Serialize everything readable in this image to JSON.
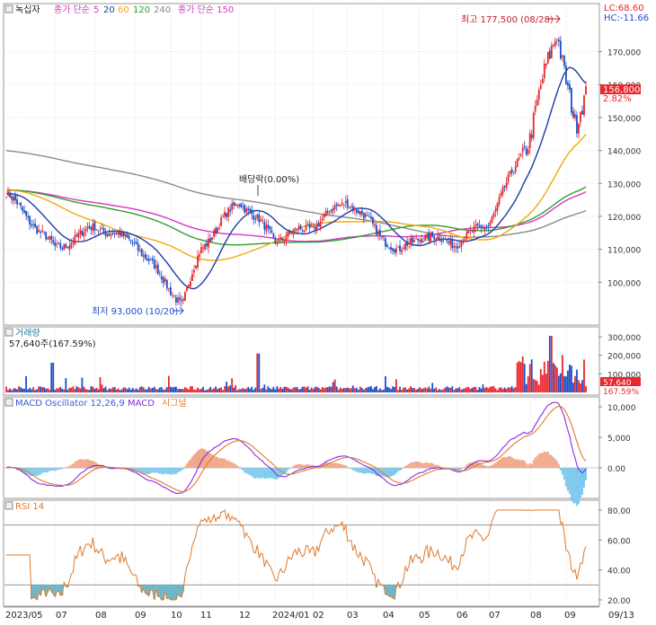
{
  "colors": {
    "up": "#e8262b",
    "down": "#1f4ec9",
    "ma5": "#d636c4",
    "ma20": "#1e3aa8",
    "ma60": "#f2a80f",
    "ma120": "#2f9e2f",
    "ma240": "#8a8a8a",
    "ma150": "#d636c4",
    "macd": "#8a2be2",
    "signal": "#e07a2c",
    "osc_pos": "#f0a88a",
    "osc_neg": "#7ccaee",
    "rsi": "#e07a2c",
    "rsi_fill": "#6fb6c9",
    "badge": "#e8262b"
  },
  "price_legend": {
    "series": "녹십자",
    "ma_title": "종가 단순",
    "ma_periods": [
      "5",
      "20",
      "60",
      "120",
      "240"
    ],
    "ma150_label": "종가 단순 150"
  },
  "corner": {
    "lc": "LC:68.60",
    "hc": "HC:-11.66"
  },
  "annotations": {
    "high": "최고 177,500 (08/28)",
    "low": "최저 93,000 (10/20)",
    "dividend": "배당락(0.00%)"
  },
  "price_axis": {
    "ticks": [
      "170,000",
      "160,000",
      "150,000",
      "140,000",
      "130,000",
      "120,000",
      "110,000",
      "100,000"
    ],
    "current": "156,800",
    "change": "2.82%"
  },
  "volume": {
    "title": "거래량",
    "info": "57,640주(167.59%)",
    "ticks": [
      "300,000",
      "200,000",
      "100,000"
    ],
    "current": "57,640",
    "pct": "167.59%"
  },
  "macd": {
    "title": "MACD Oscillator 12,26,9",
    "macd_label": "MACD",
    "signal_label": "시그널",
    "ticks": [
      "10,000",
      "5,000",
      "0.00"
    ]
  },
  "rsi": {
    "title": "RSI 14",
    "ticks": [
      "80.00",
      "60.00",
      "40.00",
      "20.00"
    ]
  },
  "x_axis": {
    "labels": [
      "2023/05",
      "07",
      "08",
      "09",
      "10",
      "11",
      "12",
      "2024/01",
      "02",
      "03",
      "04",
      "05",
      "06",
      "07",
      "08",
      "09",
      "09/13"
    ]
  },
  "chart_data": {
    "type": "candlestick",
    "title": "녹십자",
    "period": "2023/05 – 2024/09/13 (daily)",
    "price_anchors": [
      {
        "date": "2023/05",
        "close": 127000
      },
      {
        "date": "2023/07",
        "close": 110000
      },
      {
        "date": "2023/08",
        "close": 117000
      },
      {
        "date": "2023/09",
        "close": 112000
      },
      {
        "date": "2023/10/20",
        "close": 93000,
        "label": "최저"
      },
      {
        "date": "2023/11",
        "close": 110000
      },
      {
        "date": "2023/12",
        "close": 125000
      },
      {
        "date": "2024/01",
        "close": 113000
      },
      {
        "date": "2024/02",
        "close": 117000
      },
      {
        "date": "2024/03",
        "close": 125000
      },
      {
        "date": "2024/04",
        "close": 109000
      },
      {
        "date": "2024/05",
        "close": 114000
      },
      {
        "date": "2024/06",
        "close": 112000
      },
      {
        "date": "2024/07",
        "close": 118000
      },
      {
        "date": "2024/08",
        "close": 145000
      },
      {
        "date": "2024/08/28",
        "close": 177500,
        "label": "최고"
      },
      {
        "date": "2024/09",
        "close": 145000
      },
      {
        "date": "2024/09/13",
        "close": 156800
      }
    ],
    "moving_averages": {
      "ma60_end": 139000,
      "ma120_end": 127000,
      "ma150_end": 125000,
      "ma240_end": 120000,
      "ma240_start": 140000
    },
    "y_range": [
      93000,
      177500
    ],
    "volume_range": [
      0,
      300000
    ],
    "macd_range": [
      -2500,
      10000
    ],
    "rsi_range": [
      20,
      80
    ],
    "rsi_reference_lines": [
      70,
      30
    ]
  }
}
